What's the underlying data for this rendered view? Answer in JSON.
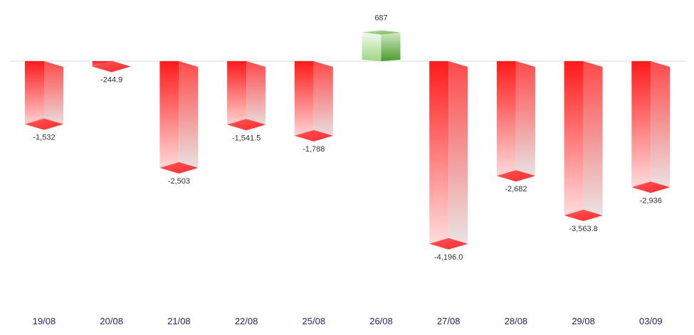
{
  "chart_data": {
    "type": "bar",
    "title": "",
    "xlabel": "",
    "ylabel": "",
    "grid": false,
    "legend": "none",
    "categories": [
      "19/08",
      "20/08",
      "21/08",
      "22/08",
      "25/08",
      "26/08",
      "27/08",
      "28/08",
      "29/08",
      "03/09"
    ],
    "values": [
      -1532,
      -244.9,
      -2503,
      -1541.5,
      -1788,
      687,
      -4196.0,
      -2682,
      -3563.8,
      -2936
    ],
    "value_labels": [
      "-1,532",
      "-244.9",
      "-2,503",
      "-1,541.5",
      "-1,788",
      "687",
      "-4,196.0",
      "-2,682",
      "-3,563.8",
      "-2,936"
    ],
    "ylim": [
      -5000,
      1300
    ],
    "colors": {
      "negative": "#ff1a1a",
      "negative_light": "#ffb3b3",
      "negative_side": "#e6e6e6",
      "positive": "#8fcc72",
      "positive_light": "#e8f5df",
      "positive_side": "#4e9a2c",
      "zero_line": "#d9d9d9",
      "tick_label": "#1f2a6b",
      "value_label": "#333333"
    }
  }
}
